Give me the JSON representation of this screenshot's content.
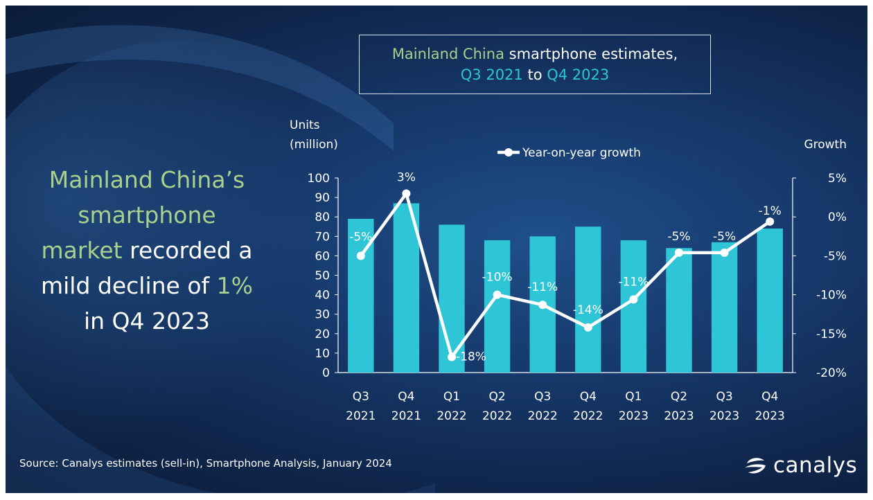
{
  "headline": {
    "line1": "Mainland China’s",
    "line2": "smartphone",
    "line3_green": "market",
    "line3_rest": " recorded a",
    "line4_text": "mild decline of ",
    "line4_green": "1%",
    "line5": "in Q4 2023"
  },
  "title": {
    "part1": "Mainland China",
    "part2": " smartphone estimates,",
    "part3": "Q3 2021",
    "part4": " to ",
    "part5": "Q4 2023"
  },
  "source_text": "Source: Canalys estimates (sell-in), Smartphone Analysis, January 2024",
  "logo": {
    "text": "canalys",
    "icon": "canalys-logo-icon"
  },
  "colors": {
    "bar": "#2ec6d6",
    "line": "#ffffff",
    "green": "#a9d18e",
    "teal": "#2ec6d6"
  },
  "chart_data": {
    "type": "bar",
    "categories": [
      "Q3\n2021",
      "Q4\n2021",
      "Q1\n2022",
      "Q2\n2022",
      "Q3\n2022",
      "Q4\n2022",
      "Q1\n2023",
      "Q2\n2023",
      "Q3\n2023",
      "Q4\n2023"
    ],
    "left_axis": {
      "label_line1": "Units",
      "label_line2": "(million)",
      "ylim": [
        0,
        100
      ],
      "ticks": [
        0,
        10,
        20,
        30,
        40,
        50,
        60,
        70,
        80,
        90,
        100
      ]
    },
    "right_axis": {
      "label": "Growth",
      "ylim": [
        -20,
        5
      ],
      "ticks": [
        -20,
        -15,
        -10,
        -5,
        0,
        5
      ],
      "tick_labels": [
        "-20%",
        "-15%",
        "-10%",
        "-5%",
        "0%",
        "5%"
      ]
    },
    "series": [
      {
        "kind": "bar",
        "values": [
          79,
          87,
          76,
          68,
          70,
          75,
          68,
          64,
          67,
          74
        ]
      },
      {
        "kind": "line",
        "name": "Year-on-year growth",
        "values": [
          -5,
          3,
          -18,
          -10,
          -11.3,
          -14.2,
          -10.6,
          -4.6,
          -4.6,
          -0.6
        ],
        "labels": [
          "-5%",
          "3%",
          "-18%",
          "-10%",
          "-11%",
          "-14%",
          "-11%",
          "-5%",
          "-5%",
          "-1%"
        ]
      }
    ],
    "legend": "top-center",
    "grid": false
  }
}
